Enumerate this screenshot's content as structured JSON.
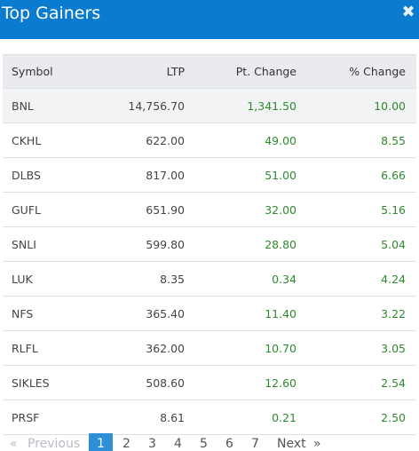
{
  "header": {
    "title": "Top Gainers",
    "close_glyph": "✖"
  },
  "table": {
    "columns": [
      "Symbol",
      "LTP",
      "Pt. Change",
      "% Change"
    ],
    "rows": [
      {
        "symbol": "BNL",
        "ltp": "14,756.70",
        "pt_change": "1,341.50",
        "pct_change": "10.00"
      },
      {
        "symbol": "CKHL",
        "ltp": "622.00",
        "pt_change": "49.00",
        "pct_change": "8.55"
      },
      {
        "symbol": "DLBS",
        "ltp": "817.00",
        "pt_change": "51.00",
        "pct_change": "6.66"
      },
      {
        "symbol": "GUFL",
        "ltp": "651.90",
        "pt_change": "32.00",
        "pct_change": "5.16"
      },
      {
        "symbol": "SNLI",
        "ltp": "599.80",
        "pt_change": "28.80",
        "pct_change": "5.04"
      },
      {
        "symbol": "LUK",
        "ltp": "8.35",
        "pt_change": "0.34",
        "pct_change": "4.24"
      },
      {
        "symbol": "NFS",
        "ltp": "365.40",
        "pt_change": "11.40",
        "pct_change": "3.22"
      },
      {
        "symbol": "RLFL",
        "ltp": "362.00",
        "pt_change": "10.70",
        "pct_change": "3.05"
      },
      {
        "symbol": "SIKLES",
        "ltp": "508.60",
        "pt_change": "12.60",
        "pct_change": "2.54"
      },
      {
        "symbol": "PRSF",
        "ltp": "8.61",
        "pt_change": "0.21",
        "pct_change": "2.50"
      }
    ]
  },
  "pagination": {
    "prev_arrow": "«",
    "prev_label": "Previous",
    "pages": [
      "1",
      "2",
      "3",
      "4",
      "5",
      "6",
      "7"
    ],
    "current_page": "1",
    "next_label": "Next",
    "next_arrow": "»"
  },
  "colors": {
    "header_bg": "#0b7bd0",
    "positive": "#2f8a2f",
    "active_page": "#2d8fd8",
    "table_head_bg": "#e9ebee"
  }
}
